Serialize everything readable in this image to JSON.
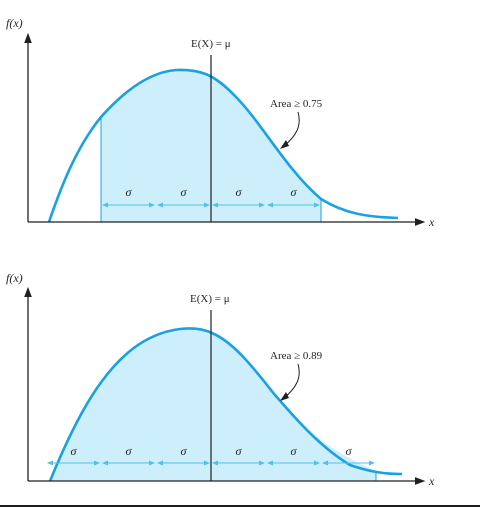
{
  "panels": [
    {
      "id": "top",
      "y_axis_label": "f(x)",
      "x_axis_label": "x",
      "mean_label": "E(X) = μ",
      "area_label": "Area ≥ 0.75",
      "sigma_label": "σ",
      "sigma_count": 4,
      "k": 2
    },
    {
      "id": "bottom",
      "y_axis_label": "f(x)",
      "x_axis_label": "x",
      "mean_label": "E(X) = μ",
      "area_label": "Area ≥ 0.89",
      "sigma_label": "σ",
      "sigma_count": 6,
      "k": 3
    }
  ],
  "colors": {
    "curve": "#1ba1e2",
    "fill": "#cdeefb",
    "axis": "#231f20",
    "arrow": "#4fc1ec"
  }
}
